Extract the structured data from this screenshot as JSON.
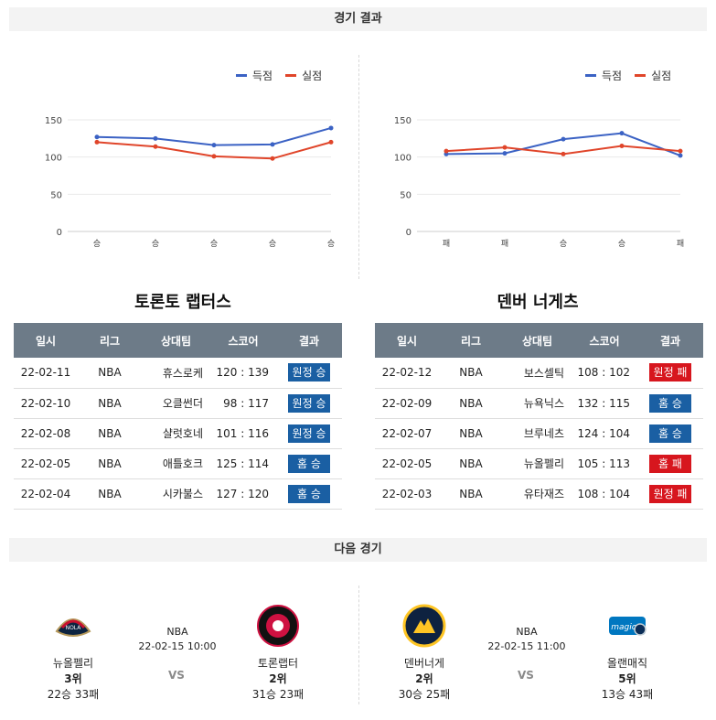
{
  "sections": {
    "results_title": "경기 결과",
    "next_title": "다음 경기"
  },
  "legend": {
    "scored": "득점",
    "conceded": "실점"
  },
  "colors": {
    "scored": "#3b62c4",
    "conceded": "#e0452a",
    "win": "#1a5fa3",
    "loss": "#d7161e"
  },
  "teams": [
    {
      "name": "토론토 랩터스"
    },
    {
      "name": "덴버 너게츠"
    }
  ],
  "table_headers": [
    "일시",
    "리그",
    "상대팀",
    "스코어",
    "결과"
  ],
  "results": [
    [
      {
        "date": "22-02-11",
        "league": "NBA",
        "opponent": "휴스로케",
        "score": "120 : 139",
        "result": "원정 승",
        "win": true
      },
      {
        "date": "22-02-10",
        "league": "NBA",
        "opponent": "오클썬더",
        "score": "98 : 117",
        "result": "원정 승",
        "win": true
      },
      {
        "date": "22-02-08",
        "league": "NBA",
        "opponent": "샬럿호네",
        "score": "101 : 116",
        "result": "원정 승",
        "win": true
      },
      {
        "date": "22-02-05",
        "league": "NBA",
        "opponent": "애틀호크",
        "score": "125 : 114",
        "result": "홈 승",
        "win": true
      },
      {
        "date": "22-02-04",
        "league": "NBA",
        "opponent": "시카불스",
        "score": "127 : 120",
        "result": "홈 승",
        "win": true
      }
    ],
    [
      {
        "date": "22-02-12",
        "league": "NBA",
        "opponent": "보스셀틱",
        "score": "108 : 102",
        "result": "원정 패",
        "win": false
      },
      {
        "date": "22-02-09",
        "league": "NBA",
        "opponent": "뉴욕닉스",
        "score": "132 : 115",
        "result": "홈 승",
        "win": true
      },
      {
        "date": "22-02-07",
        "league": "NBA",
        "opponent": "브루네츠",
        "score": "124 : 104",
        "result": "홈 승",
        "win": true
      },
      {
        "date": "22-02-05",
        "league": "NBA",
        "opponent": "뉴올펠리",
        "score": "105 : 113",
        "result": "홈 패",
        "win": false
      },
      {
        "date": "22-02-03",
        "league": "NBA",
        "opponent": "유타재즈",
        "score": "108 : 104",
        "result": "원정 패",
        "win": false
      }
    ]
  ],
  "chart_data": [
    {
      "type": "line",
      "categories": [
        "승",
        "승",
        "승",
        "승",
        "승"
      ],
      "series": [
        {
          "name": "득점",
          "values": [
            127,
            125,
            116,
            117,
            139
          ]
        },
        {
          "name": "실점",
          "values": [
            120,
            114,
            101,
            98,
            120
          ]
        }
      ],
      "yticks": [
        0,
        50,
        100,
        150
      ],
      "ylim": [
        0,
        150
      ],
      "legend_position": "top-right",
      "grid": true
    },
    {
      "type": "line",
      "categories": [
        "패",
        "패",
        "승",
        "승",
        "패"
      ],
      "series": [
        {
          "name": "득점",
          "values": [
            104,
            105,
            124,
            132,
            102
          ]
        },
        {
          "name": "실점",
          "values": [
            108,
            113,
            104,
            115,
            108
          ]
        }
      ],
      "yticks": [
        0,
        50,
        100,
        150
      ],
      "ylim": [
        0,
        150
      ],
      "legend_position": "top-right",
      "grid": true
    }
  ],
  "next_games": [
    {
      "league": "NBA",
      "datetime": "22-02-15 10:00",
      "vs": "VS",
      "home": {
        "name": "뉴올펠리",
        "rank": "3위",
        "record": "22승 33패",
        "logo_icon": "pelicans-logo"
      },
      "away": {
        "name": "토론랩터",
        "rank": "2위",
        "record": "31승 23패",
        "logo_icon": "raptors-logo"
      }
    },
    {
      "league": "NBA",
      "datetime": "22-02-15 11:00",
      "vs": "VS",
      "home": {
        "name": "덴버너게",
        "rank": "2위",
        "record": "30승 25패",
        "logo_icon": "nuggets-logo"
      },
      "away": {
        "name": "올랜매직",
        "rank": "5위",
        "record": "13승 43패",
        "logo_icon": "magic-logo"
      }
    }
  ]
}
